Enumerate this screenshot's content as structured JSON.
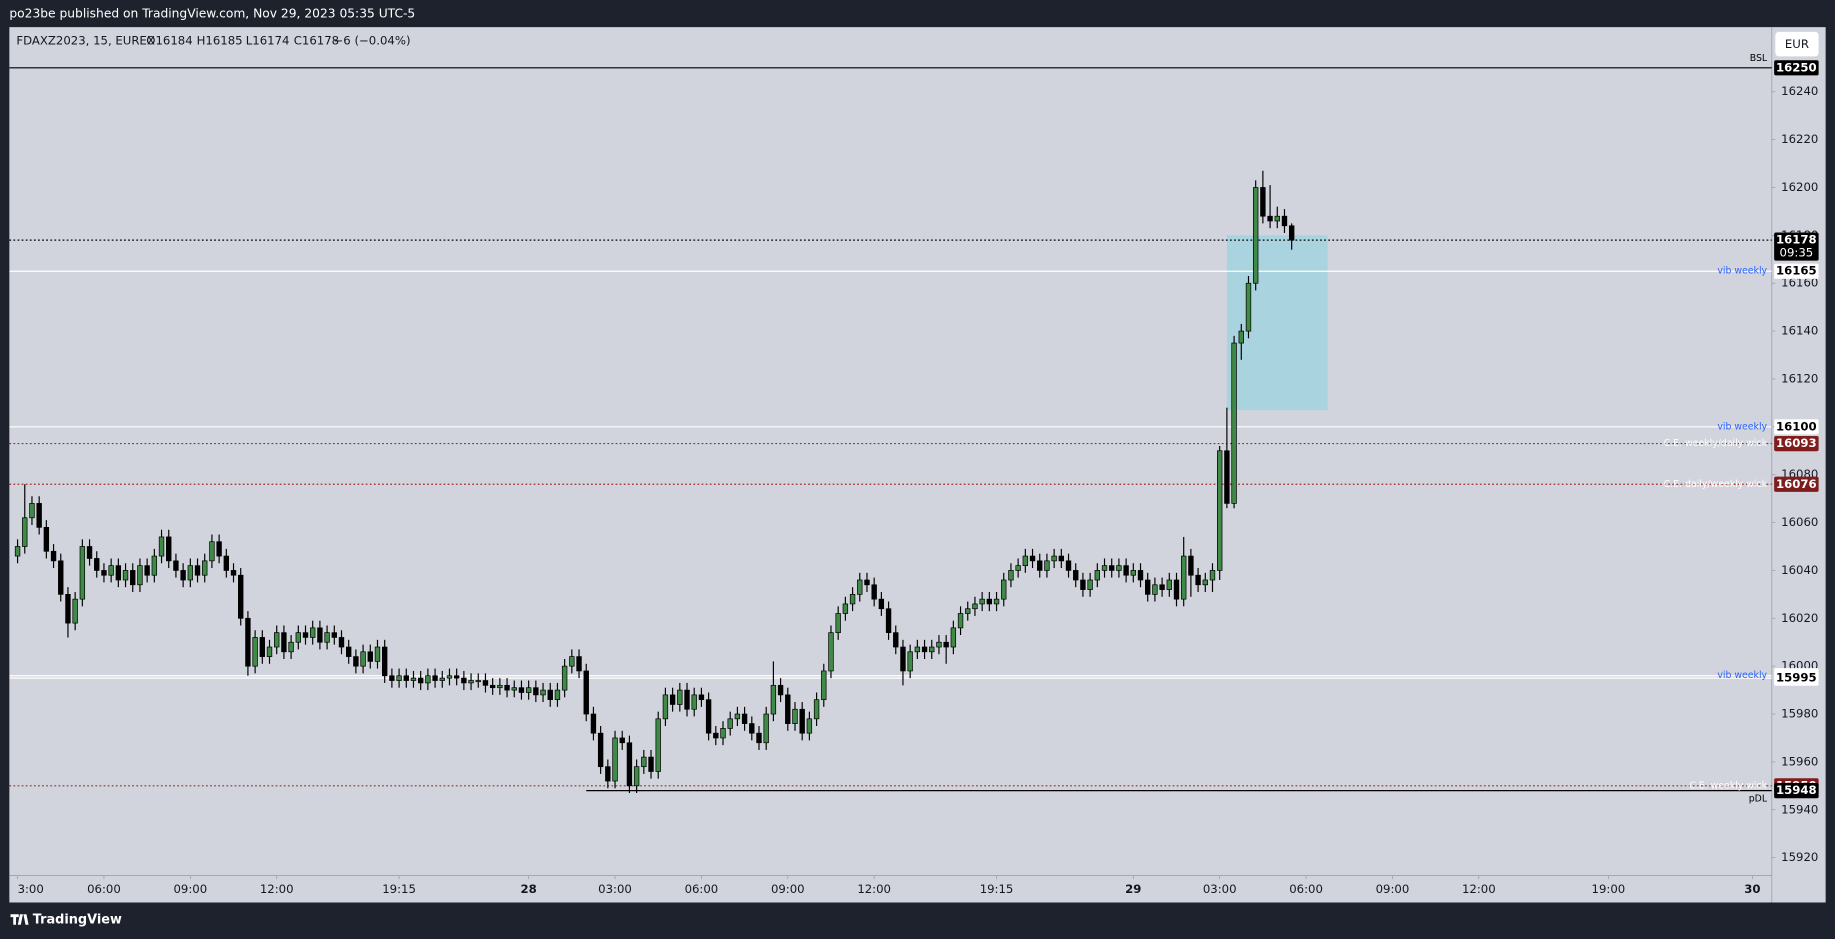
{
  "header": {
    "publisher": "po23be published on TradingView.com, Nov 29, 2023 05:35 UTC-5",
    "brand": "TradingView",
    "currency": "EUR"
  },
  "chart_data": {
    "type": "candlestick",
    "legend": {
      "symbol": "FDAXZ2023, 15, EUREX",
      "open": "O16184",
      "high": "H16185",
      "low": "L16174",
      "close": "C16178",
      "change": "−6 (−0.04%)"
    },
    "up_color": "#3f8a46",
    "down_color": "#000000",
    "background": "#d1d4dc",
    "grid": false,
    "xlim": [
      -1.14,
      243.7
    ],
    "xticks": [
      {
        "value": 0,
        "label": "3:00"
      },
      {
        "value": 12,
        "label": "06:00"
      },
      {
        "value": 24,
        "label": "09:00"
      },
      {
        "value": 36,
        "label": "12:00"
      },
      {
        "value": 53,
        "label": "19:15"
      },
      {
        "value": 71,
        "label": "28"
      },
      {
        "value": 83,
        "label": "03:00"
      },
      {
        "value": 95,
        "label": "06:00"
      },
      {
        "value": 107,
        "label": "09:00"
      },
      {
        "value": 119,
        "label": "12:00"
      },
      {
        "value": 136,
        "label": "19:15"
      },
      {
        "value": 155,
        "label": "29"
      },
      {
        "value": 167,
        "label": "03:00"
      },
      {
        "value": 179,
        "label": "06:00"
      },
      {
        "value": 191,
        "label": "09:00"
      },
      {
        "value": 203,
        "label": "12:00"
      },
      {
        "value": 221,
        "label": "19:00"
      },
      {
        "value": 241,
        "label": "30"
      }
    ],
    "ylim": [
      15912.5,
      16267
    ],
    "yticks": [
      15920,
      15940,
      15960,
      15980,
      16000,
      16020,
      16040,
      16060,
      16080,
      16100,
      16120,
      16140,
      16160,
      16180,
      16200,
      16220,
      16240
    ],
    "zone": {
      "start": 168,
      "end": 182,
      "top": 16180,
      "bottom": 16107,
      "color": "#a9d3df"
    },
    "countdown": "09:35",
    "levels": [
      {
        "price": 16250,
        "label": "BSL",
        "line_color": "#000000",
        "style": "solid",
        "label_color": "#000000",
        "box_color": "#000000",
        "text_color": "#ffffff"
      },
      {
        "price": 16178,
        "line_color": "#000000",
        "style": "dotted",
        "box_color": "#000000",
        "text_color": "#ffffff"
      },
      {
        "price": 16165,
        "label": "vib weekly",
        "line_color": "#ffffff",
        "style": "solid",
        "label_color": "#2962ff",
        "box_color": "#ffffff",
        "text_color": "#000000"
      },
      {
        "price": 16100,
        "label": "vib weekly",
        "line_color": "#ffffff",
        "style": "solid",
        "label_color": "#2962ff",
        "box_color": "#ffffff",
        "text_color": "#000000"
      },
      {
        "price": 16093,
        "label": "C.E. weekly/daily wick",
        "line_color": "#9c2a2a",
        "style": "dotted",
        "label_color": "#ffffff",
        "box_color": "#7f1d1d",
        "text_color": "#ffffff"
      },
      {
        "price": 16076,
        "label": "C.E. daily/weekly wick",
        "line_color": "#9c2a2a",
        "style": "dotted",
        "label_color": "#ffffff",
        "box_color": "#7f1d1d",
        "text_color": "#ffffff"
      },
      {
        "price": 15996,
        "label": "vib weekly",
        "line_color": "#ffffff",
        "style": "solid",
        "label_color": "#2962ff",
        "box_color": "#ffffff",
        "text_color": "#000000"
      },
      {
        "price": 15995,
        "line_color": "#ffffff",
        "style": "solid",
        "box_color": "#ffffff",
        "text_color": "#000000"
      },
      {
        "price": 15950,
        "label": "C.E. weekly wick",
        "line_color": "#9c2a2a",
        "style": "dotted",
        "label_color": "#ffffff",
        "box_color": "#7f1d1d",
        "text_color": "#ffffff"
      },
      {
        "price": 15948,
        "label": "pDL",
        "from": 79,
        "line_color": "#000000",
        "style": "solid",
        "label_color": "#000000",
        "box_color": "#000000",
        "text_color": "#ffffff"
      }
    ],
    "candles": [
      [
        16046,
        16053,
        16043,
        16050
      ],
      [
        16050,
        16076,
        16047,
        16062
      ],
      [
        16062,
        16071,
        16059,
        16068
      ],
      [
        16068,
        16071,
        16055,
        16058
      ],
      [
        16058,
        16061,
        16045,
        16048
      ],
      [
        16048,
        16051,
        16041,
        16044
      ],
      [
        16044,
        16047,
        16027,
        16030
      ],
      [
        16030,
        16033,
        16012,
        16018
      ],
      [
        16018,
        16031,
        16015,
        16028
      ],
      [
        16028,
        16053,
        16025,
        16050
      ],
      [
        16050,
        16053,
        16042,
        16045
      ],
      [
        16045,
        16048,
        16037,
        16040
      ],
      [
        16040,
        16043,
        16035,
        16038
      ],
      [
        16038,
        16045,
        16035,
        16042
      ],
      [
        16042,
        16045,
        16033,
        16036
      ],
      [
        16036,
        16043,
        16033,
        16040
      ],
      [
        16040,
        16043,
        16031,
        16034
      ],
      [
        16034,
        16045,
        16031,
        16042
      ],
      [
        16042,
        16045,
        16035,
        16038
      ],
      [
        16038,
        16049,
        16035,
        16046
      ],
      [
        16046,
        16057,
        16043,
        16054
      ],
      [
        16054,
        16057,
        16041,
        16044
      ],
      [
        16044,
        16047,
        16037,
        16040
      ],
      [
        16040,
        16043,
        16033,
        16036
      ],
      [
        16036,
        16045,
        16033,
        16042
      ],
      [
        16042,
        16045,
        16035,
        16038
      ],
      [
        16038,
        16047,
        16035,
        16044
      ],
      [
        16044,
        16055,
        16041,
        16052
      ],
      [
        16052,
        16055,
        16043,
        16046
      ],
      [
        16046,
        16049,
        16037,
        16040
      ],
      [
        16040,
        16043,
        16035,
        16038
      ],
      [
        16038,
        16041,
        16017,
        16020
      ],
      [
        16020,
        16023,
        15996,
        16000
      ],
      [
        16000,
        16015,
        15997,
        16012
      ],
      [
        16012,
        16015,
        16001,
        16004
      ],
      [
        16004,
        16011,
        16001,
        16008
      ],
      [
        16008,
        16017,
        16005,
        16014
      ],
      [
        16014,
        16017,
        16003,
        16006
      ],
      [
        16006,
        16013,
        16003,
        16010
      ],
      [
        16010,
        16017,
        16007,
        16014
      ],
      [
        16014,
        16017,
        16009,
        16012
      ],
      [
        16012,
        16019,
        16009,
        16016
      ],
      [
        16016,
        16019,
        16007,
        16010
      ],
      [
        16010,
        16017,
        16007,
        16014
      ],
      [
        16014,
        16017,
        16009,
        16012
      ],
      [
        16012,
        16015,
        16005,
        16008
      ],
      [
        16008,
        16011,
        16001,
        16004
      ],
      [
        16004,
        16007,
        15997,
        16000
      ],
      [
        16000,
        16009,
        15997,
        16006
      ],
      [
        16006,
        16009,
        15999,
        16002
      ],
      [
        16002,
        16011,
        15999,
        16008
      ],
      [
        16008,
        16011,
        15993,
        15996
      ],
      [
        15996,
        15999,
        15991,
        15994
      ],
      [
        15994,
        15999,
        15991,
        15996
      ],
      [
        15996,
        15999,
        15991,
        15994
      ],
      [
        15994,
        15998,
        15991,
        15995
      ],
      [
        15995,
        15998,
        15990,
        15993
      ],
      [
        15993,
        15999,
        15990,
        15996
      ],
      [
        15996,
        15999,
        15991,
        15994
      ],
      [
        15994,
        15998,
        15991,
        15995
      ],
      [
        15995,
        15999,
        15992,
        15996
      ],
      [
        15996,
        15999,
        15992,
        15995
      ],
      [
        15995,
        15998,
        15990,
        15993
      ],
      [
        15993,
        15997,
        15990,
        15994
      ],
      [
        15994,
        15997,
        15991,
        15994
      ],
      [
        15994,
        15997,
        15989,
        15992
      ],
      [
        15992,
        15995,
        15988,
        15991
      ],
      [
        15991,
        15995,
        15988,
        15992
      ],
      [
        15992,
        15995,
        15987,
        15990
      ],
      [
        15990,
        15994,
        15987,
        15991
      ],
      [
        15991,
        15994,
        15986,
        15989
      ],
      [
        15989,
        15994,
        15986,
        15991
      ],
      [
        15991,
        15994,
        15985,
        15988
      ],
      [
        15988,
        15993,
        15985,
        15990
      ],
      [
        15990,
        15993,
        15983,
        15986
      ],
      [
        15986,
        15993,
        15983,
        15990
      ],
      [
        15990,
        16003,
        15987,
        16000
      ],
      [
        16000,
        16007,
        15997,
        16004
      ],
      [
        16004,
        16007,
        15995,
        15998
      ],
      [
        15998,
        16001,
        15977,
        15980
      ],
      [
        15980,
        15983,
        15969,
        15972
      ],
      [
        15972,
        15975,
        15955,
        15958
      ],
      [
        15958,
        15961,
        15949,
        15952
      ],
      [
        15952,
        15973,
        15949,
        15970
      ],
      [
        15970,
        15973,
        15965,
        15968
      ],
      [
        15968,
        15971,
        15947,
        15950
      ],
      [
        15950,
        15961,
        15947,
        15958
      ],
      [
        15958,
        15965,
        15955,
        15962
      ],
      [
        15962,
        15965,
        15953,
        15956
      ],
      [
        15956,
        15981,
        15953,
        15978
      ],
      [
        15978,
        15991,
        15975,
        15988
      ],
      [
        15988,
        15991,
        15981,
        15984
      ],
      [
        15984,
        15993,
        15981,
        15990
      ],
      [
        15990,
        15993,
        15979,
        15982
      ],
      [
        15982,
        15991,
        15979,
        15988
      ],
      [
        15988,
        15991,
        15983,
        15986
      ],
      [
        15986,
        15989,
        15969,
        15972
      ],
      [
        15972,
        15975,
        15967,
        15970
      ],
      [
        15970,
        15977,
        15967,
        15974
      ],
      [
        15974,
        15981,
        15971,
        15978
      ],
      [
        15978,
        15983,
        15975,
        15980
      ],
      [
        15980,
        15983,
        15973,
        15976
      ],
      [
        15976,
        15979,
        15969,
        15972
      ],
      [
        15972,
        15975,
        15965,
        15968
      ],
      [
        15968,
        15983,
        15965,
        15980
      ],
      [
        15980,
        16002,
        15977,
        15992
      ],
      [
        15992,
        15995,
        15985,
        15988
      ],
      [
        15988,
        15991,
        15973,
        15976
      ],
      [
        15976,
        15985,
        15973,
        15982
      ],
      [
        15982,
        15985,
        15969,
        15972
      ],
      [
        15972,
        15981,
        15969,
        15978
      ],
      [
        15978,
        15989,
        15975,
        15986
      ],
      [
        15986,
        16001,
        15983,
        15998
      ],
      [
        15998,
        16017,
        15995,
        16014
      ],
      [
        16014,
        16025,
        16011,
        16022
      ],
      [
        16022,
        16029,
        16019,
        16026
      ],
      [
        16026,
        16033,
        16023,
        16030
      ],
      [
        16030,
        16039,
        16027,
        16036
      ],
      [
        16036,
        16039,
        16031,
        16034
      ],
      [
        16034,
        16037,
        16025,
        16028
      ],
      [
        16028,
        16031,
        16021,
        16024
      ],
      [
        16024,
        16027,
        16011,
        16014
      ],
      [
        16014,
        16017,
        16005,
        16008
      ],
      [
        16008,
        16011,
        15992,
        15998
      ],
      [
        15998,
        16009,
        15995,
        16006
      ],
      [
        16006,
        16011,
        16003,
        16008
      ],
      [
        16008,
        16011,
        16003,
        16006
      ],
      [
        16006,
        16011,
        16003,
        16008
      ],
      [
        16008,
        16013,
        16005,
        16010
      ],
      [
        16010,
        16013,
        16001,
        16008
      ],
      [
        16008,
        16019,
        16005,
        16016
      ],
      [
        16016,
        16025,
        16013,
        16022
      ],
      [
        16022,
        16027,
        16019,
        16024
      ],
      [
        16024,
        16029,
        16021,
        16026
      ],
      [
        16026,
        16031,
        16023,
        16028
      ],
      [
        16028,
        16031,
        16023,
        16026
      ],
      [
        16026,
        16031,
        16023,
        16028
      ],
      [
        16028,
        16039,
        16025,
        16036
      ],
      [
        16036,
        16043,
        16033,
        16040
      ],
      [
        16040,
        16045,
        16037,
        16042
      ],
      [
        16042,
        16049,
        16039,
        16046
      ],
      [
        16046,
        16049,
        16041,
        16044
      ],
      [
        16044,
        16047,
        16037,
        16040
      ],
      [
        16040,
        16047,
        16037,
        16044
      ],
      [
        16044,
        16049,
        16041,
        16046
      ],
      [
        16046,
        16049,
        16041,
        16044
      ],
      [
        16044,
        16047,
        16037,
        16040
      ],
      [
        16040,
        16043,
        16033,
        16036
      ],
      [
        16036,
        16039,
        16029,
        16032
      ],
      [
        16032,
        16039,
        16029,
        16036
      ],
      [
        16036,
        16043,
        16033,
        16040
      ],
      [
        16040,
        16045,
        16037,
        16042
      ],
      [
        16042,
        16045,
        16037,
        16040
      ],
      [
        16040,
        16045,
        16037,
        16042
      ],
      [
        16042,
        16045,
        16035,
        16038
      ],
      [
        16038,
        16043,
        16035,
        16040
      ],
      [
        16040,
        16043,
        16033,
        16036
      ],
      [
        16036,
        16039,
        16027,
        16030
      ],
      [
        16030,
        16037,
        16027,
        16034
      ],
      [
        16034,
        16037,
        16029,
        16032
      ],
      [
        16032,
        16039,
        16029,
        16036
      ],
      [
        16036,
        16039,
        16025,
        16028
      ],
      [
        16028,
        16054,
        16025,
        16046
      ],
      [
        16046,
        16049,
        16029,
        16038
      ],
      [
        16038,
        16041,
        16031,
        16034
      ],
      [
        16034,
        16039,
        16031,
        16036
      ],
      [
        16036,
        16043,
        16031,
        16040
      ],
      [
        16040,
        16092,
        16036,
        16090
      ],
      [
        16090,
        16108,
        16066,
        16068
      ],
      [
        16068,
        16138,
        16066,
        16135
      ],
      [
        16135,
        16143,
        16128,
        16140
      ],
      [
        16140,
        16163,
        16137,
        16160
      ],
      [
        16160,
        16203,
        16157,
        16200
      ],
      [
        16200,
        16207,
        16185,
        16188
      ],
      [
        16188,
        16201,
        16183,
        16186
      ],
      [
        16186,
        16192,
        16183,
        16188
      ],
      [
        16188,
        16191,
        16181,
        16184
      ],
      [
        16184,
        16185,
        16174,
        16178
      ]
    ]
  }
}
